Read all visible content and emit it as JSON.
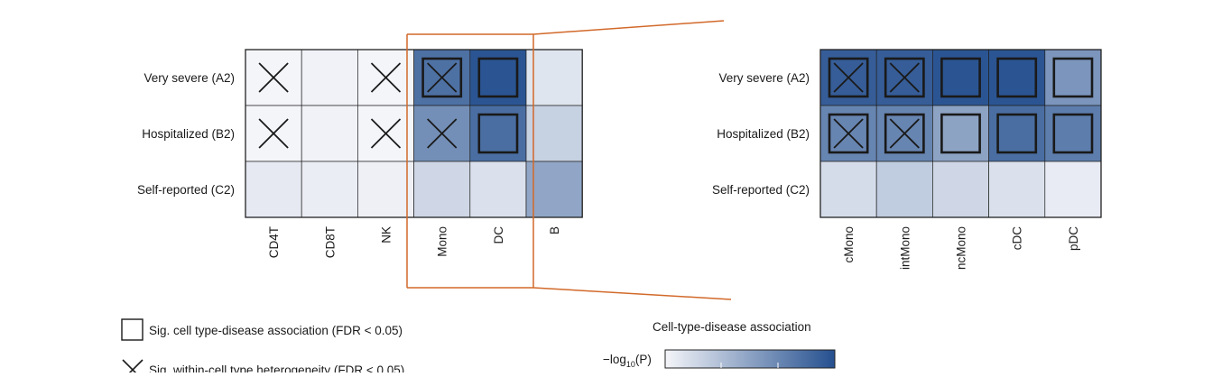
{
  "colors": {
    "low": "#f4f5f9",
    "high": "#25508f",
    "frame": "#222222",
    "zoom_lines": "#d2692a"
  },
  "chart_data": [
    {
      "type": "heatmap",
      "rows": [
        "Very severe (A2)",
        "Hospitalized (B2)",
        "Self-reported (C2)"
      ],
      "columns": [
        "CD4T",
        "CD8T",
        "NK",
        "Mono",
        "DC",
        "B"
      ],
      "values": [
        [
          0.0,
          0.02,
          0.0,
          0.8,
          0.97,
          0.1
        ],
        [
          0.0,
          0.02,
          0.0,
          0.62,
          0.82,
          0.22
        ],
        [
          0.07,
          0.05,
          0.03,
          0.18,
          0.12,
          0.48
        ]
      ],
      "sig_association": [
        [
          false,
          false,
          false,
          true,
          true,
          false
        ],
        [
          false,
          false,
          false,
          false,
          true,
          false
        ],
        [
          false,
          false,
          false,
          false,
          false,
          false
        ]
      ],
      "sig_heterogeneity": [
        [
          true,
          false,
          true,
          true,
          false,
          false
        ],
        [
          true,
          false,
          true,
          true,
          false,
          false
        ],
        [
          false,
          false,
          false,
          false,
          false,
          false
        ]
      ]
    },
    {
      "type": "heatmap",
      "rows": [
        "Very severe (A2)",
        "Hospitalized (B2)",
        "Self-reported (C2)"
      ],
      "columns": [
        "cMono",
        "intMono",
        "ncMono",
        "cDC",
        "pDC"
      ],
      "values": [
        [
          0.92,
          0.92,
          0.97,
          0.97,
          0.58
        ],
        [
          0.68,
          0.68,
          0.5,
          0.82,
          0.73
        ],
        [
          0.15,
          0.25,
          0.18,
          0.12,
          0.06
        ]
      ],
      "sig_association": [
        [
          true,
          true,
          true,
          true,
          true
        ],
        [
          true,
          true,
          true,
          true,
          true
        ],
        [
          false,
          false,
          false,
          false,
          false
        ]
      ],
      "sig_heterogeneity": [
        [
          true,
          true,
          false,
          false,
          false
        ],
        [
          true,
          true,
          false,
          false,
          false
        ],
        [
          false,
          false,
          false,
          false,
          false
        ]
      ]
    }
  ],
  "legend": {
    "association_label": "Sig. cell type-disease association (FDR < 0.05)",
    "heterogeneity_label": "Sig. within-cell type heterogeneity (FDR < 0.05)",
    "colorbar_title": "Cell-type-disease association",
    "colorbar_label_prefix": "−log",
    "colorbar_label_sub": "10",
    "colorbar_label_suffix": "(P)"
  }
}
